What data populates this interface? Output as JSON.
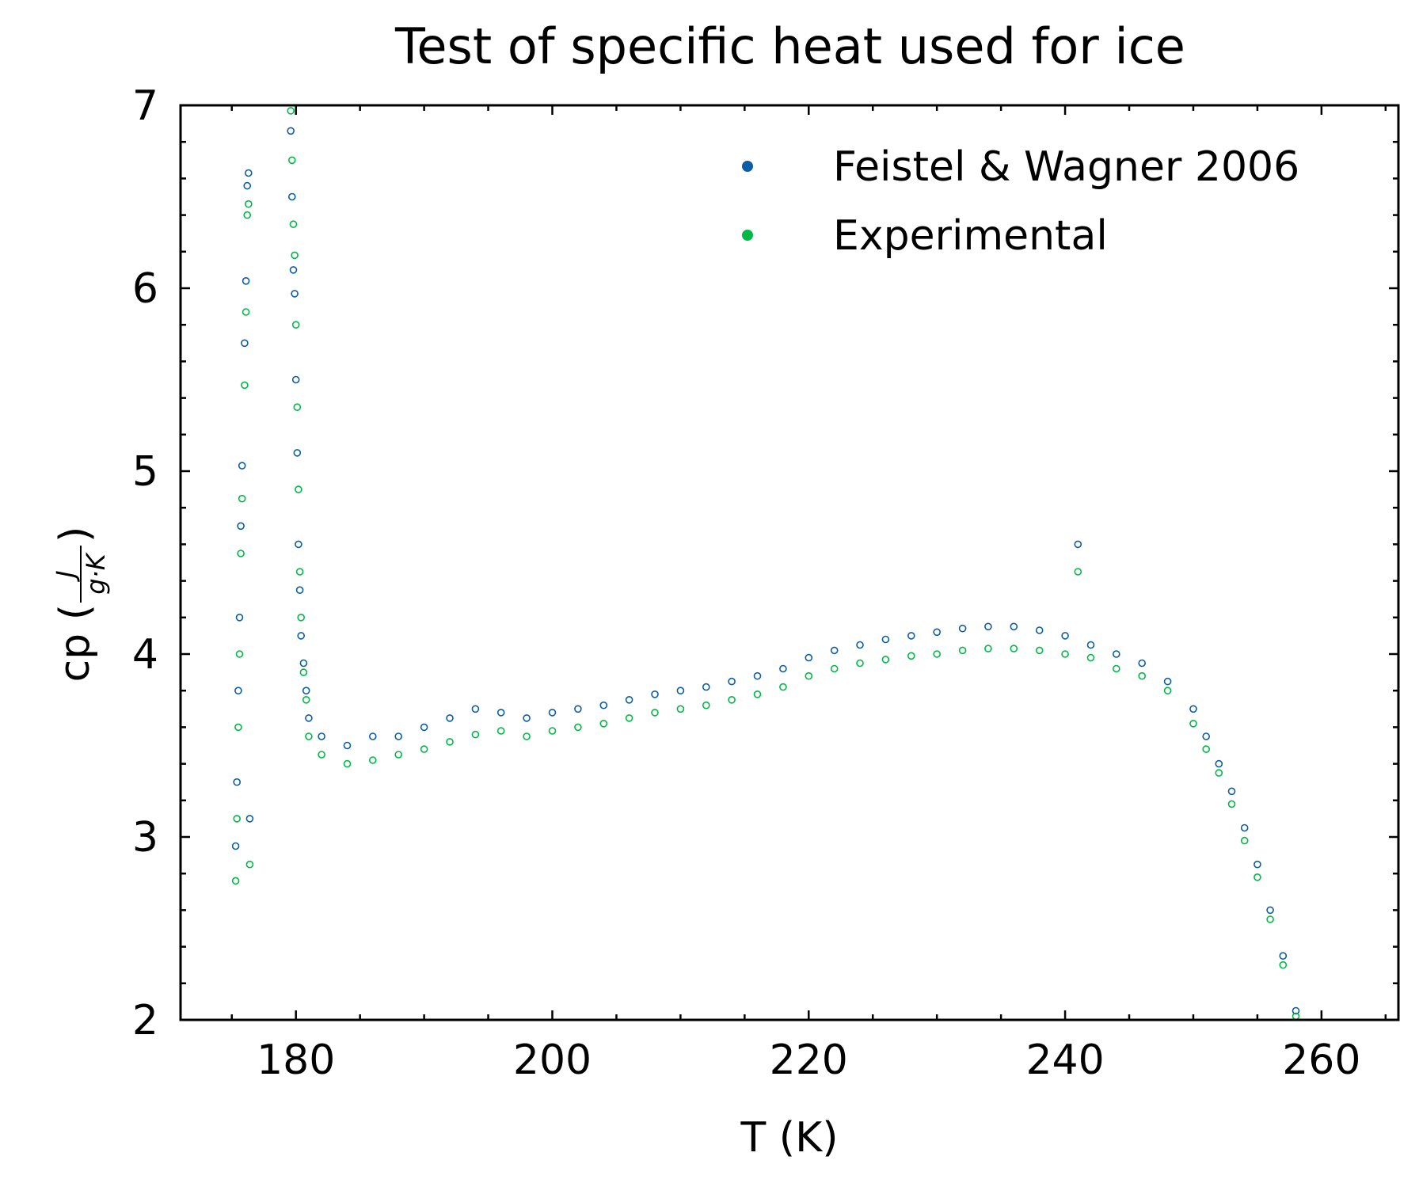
{
  "chart_data": {
    "type": "scatter",
    "title": "Test of specific heat used for ice",
    "xlabel": "T (K)",
    "ylabel": {
      "prefix": "cp (",
      "numerator": "J",
      "denominator": "g·K",
      "suffix": ")"
    },
    "xlim": [
      171,
      266
    ],
    "ylim": [
      2,
      7
    ],
    "xticks": [
      180,
      200,
      220,
      240,
      260
    ],
    "yticks": [
      2,
      3,
      4,
      5,
      6,
      7
    ],
    "x_minor_step": 5,
    "y_minor_step": 0.2,
    "grid": false,
    "legend_position": "top-right",
    "marker": "hollow-circle",
    "series": [
      {
        "name": "Feistel & Wagner 2006",
        "color": "#0c5da5",
        "x": [
          175.3,
          175.4,
          175.5,
          175.6,
          175.7,
          175.8,
          176.0,
          176.1,
          176.2,
          176.3,
          176.4,
          179.6,
          179.7,
          179.8,
          179.9,
          180.0,
          180.1,
          180.2,
          180.3,
          180.4,
          180.6,
          180.8,
          181.0,
          182.0,
          184.0,
          186.0,
          188.0,
          190.0,
          192.0,
          194.0,
          196.0,
          198.0,
          200.0,
          202.0,
          204.0,
          206.0,
          208.0,
          210.0,
          212.0,
          214.0,
          216.0,
          218.0,
          220.0,
          222.0,
          224.0,
          226.0,
          228.0,
          230.0,
          232.0,
          234.0,
          236.0,
          238.0,
          240.0,
          241.0,
          242.0,
          244.0,
          246.0,
          248.0,
          250.0,
          251.0,
          252.0,
          253.0,
          254.0,
          255.0,
          256.0,
          257.0,
          258.0
        ],
        "y": [
          2.95,
          3.3,
          3.8,
          4.2,
          4.7,
          5.03,
          5.7,
          6.04,
          6.56,
          6.63,
          3.1,
          6.86,
          6.5,
          6.1,
          5.97,
          5.5,
          5.1,
          4.6,
          4.35,
          4.1,
          3.95,
          3.8,
          3.65,
          3.55,
          3.5,
          3.55,
          3.55,
          3.6,
          3.65,
          3.7,
          3.68,
          3.65,
          3.68,
          3.7,
          3.72,
          3.75,
          3.78,
          3.8,
          3.82,
          3.85,
          3.88,
          3.92,
          3.98,
          4.02,
          4.05,
          4.08,
          4.1,
          4.12,
          4.14,
          4.15,
          4.15,
          4.13,
          4.1,
          4.6,
          4.05,
          4.0,
          3.95,
          3.85,
          3.7,
          3.55,
          3.4,
          3.25,
          3.05,
          2.85,
          2.6,
          2.35,
          2.05
        ]
      },
      {
        "name": "Experimental",
        "color": "#00b945",
        "x": [
          175.3,
          175.4,
          175.5,
          175.6,
          175.7,
          175.8,
          176.0,
          176.1,
          176.2,
          176.3,
          176.4,
          179.6,
          179.7,
          179.8,
          179.9,
          180.0,
          180.1,
          180.2,
          180.3,
          180.4,
          180.6,
          180.8,
          181.0,
          182.0,
          184.0,
          186.0,
          188.0,
          190.0,
          192.0,
          194.0,
          196.0,
          198.0,
          200.0,
          202.0,
          204.0,
          206.0,
          208.0,
          210.0,
          212.0,
          214.0,
          216.0,
          218.0,
          220.0,
          222.0,
          224.0,
          226.0,
          228.0,
          230.0,
          232.0,
          234.0,
          236.0,
          238.0,
          240.0,
          241.0,
          242.0,
          244.0,
          246.0,
          248.0,
          250.0,
          251.0,
          252.0,
          253.0,
          254.0,
          255.0,
          256.0,
          257.0,
          258.0
        ],
        "y": [
          2.76,
          3.1,
          3.6,
          4.0,
          4.55,
          4.85,
          5.47,
          5.87,
          6.4,
          6.46,
          2.85,
          6.97,
          6.7,
          6.35,
          6.18,
          5.8,
          5.35,
          4.9,
          4.45,
          4.2,
          3.9,
          3.75,
          3.55,
          3.45,
          3.4,
          3.42,
          3.45,
          3.48,
          3.52,
          3.56,
          3.58,
          3.55,
          3.58,
          3.6,
          3.62,
          3.65,
          3.68,
          3.7,
          3.72,
          3.75,
          3.78,
          3.82,
          3.88,
          3.92,
          3.95,
          3.97,
          3.99,
          4.0,
          4.02,
          4.03,
          4.03,
          4.02,
          4.0,
          4.45,
          3.98,
          3.92,
          3.88,
          3.8,
          3.62,
          3.48,
          3.35,
          3.18,
          2.98,
          2.78,
          2.55,
          2.3,
          2.02
        ]
      }
    ]
  }
}
